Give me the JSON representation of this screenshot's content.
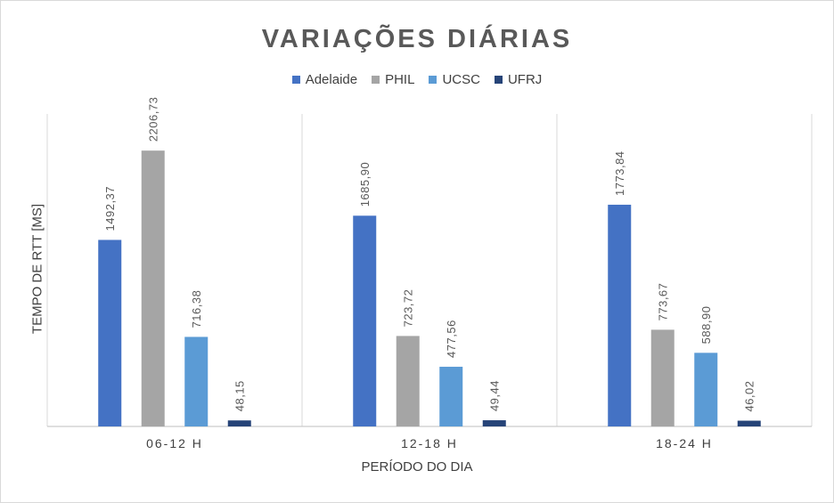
{
  "chart_data": {
    "type": "bar",
    "title": "VARIAÇÕES DIÁRIAS",
    "xlabel": "PERÍODO DO DIA",
    "ylabel": "TEMPO DE RTT [MS]",
    "categories": [
      "06-12 H",
      "12-18 H",
      "18-24 H"
    ],
    "series": [
      {
        "name": "Adelaide",
        "color": "#4472c4",
        "values": [
          1492.37,
          1685.9,
          1773.84
        ],
        "labels": [
          "1492,37",
          "1685,90",
          "1773,84"
        ]
      },
      {
        "name": "PHIL",
        "color": "#a5a5a5",
        "values": [
          2206.73,
          723.72,
          773.67
        ],
        "labels": [
          "2206,73",
          "723,72",
          "773,67"
        ]
      },
      {
        "name": "UCSC",
        "color": "#5b9bd5",
        "values": [
          716.38,
          477.56,
          588.9
        ],
        "labels": [
          "716,38",
          "477,56",
          "588,90"
        ]
      },
      {
        "name": "UFRJ",
        "color": "#264478",
        "values": [
          48.15,
          49.44,
          46.02
        ],
        "labels": [
          "48,15",
          "49,44",
          "46,02"
        ]
      }
    ],
    "ylim": [
      0,
      2500
    ],
    "legend": "top",
    "grid": "vertical separators between categories"
  }
}
